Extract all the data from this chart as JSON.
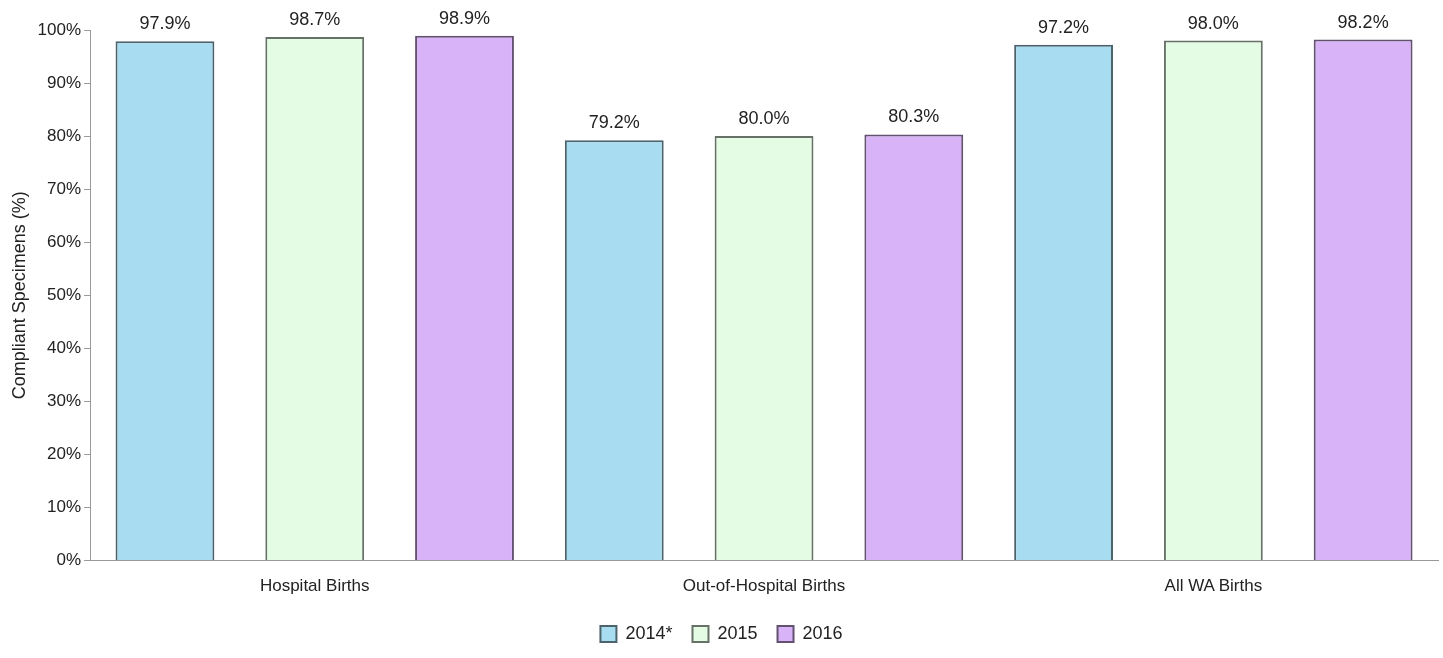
{
  "chart_data": {
    "type": "bar",
    "ylabel": "Compliant Specimens (%)",
    "categories": [
      "Hospital Births",
      "Out-of-Hospital Births",
      "All WA Births"
    ],
    "series": [
      {
        "name": "2014*",
        "color": "#a8dcf0",
        "values": [
          97.9,
          79.2,
          97.2
        ],
        "value_labels": [
          "97.9%",
          "79.2%",
          "97.2%"
        ]
      },
      {
        "name": "2015",
        "color": "#e4fbe4",
        "values": [
          98.7,
          80.0,
          98.0
        ],
        "value_labels": [
          "98.7%",
          "80.0%",
          "98.0%"
        ]
      },
      {
        "name": "2016",
        "color": "#d9b3f7",
        "values": [
          98.9,
          80.3,
          98.2
        ],
        "value_labels": [
          "98.9%",
          "80.3%",
          "98.2%"
        ]
      }
    ],
    "ylim": [
      0,
      100
    ],
    "yticks": [
      {
        "value": 0,
        "label": "0%"
      },
      {
        "value": 10,
        "label": "10%"
      },
      {
        "value": 20,
        "label": "20%"
      },
      {
        "value": 30,
        "label": "30%"
      },
      {
        "value": 40,
        "label": "40%"
      },
      {
        "value": 50,
        "label": "50%"
      },
      {
        "value": 60,
        "label": "60%"
      },
      {
        "value": 70,
        "label": "70%"
      },
      {
        "value": 80,
        "label": "80%"
      },
      {
        "value": 90,
        "label": "90%"
      },
      {
        "value": 100,
        "label": "100%"
      }
    ],
    "grid": false,
    "legend": "bottom"
  }
}
